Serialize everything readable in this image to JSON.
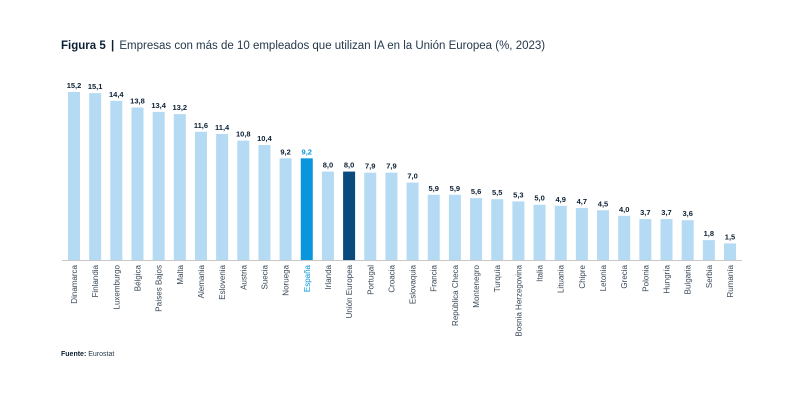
{
  "figure": {
    "label": "Figura 5",
    "separator": "|",
    "caption": "Empresas con más de 10 empleados que utilizan IA en la Unión Europea (%, 2023)"
  },
  "source": {
    "label": "Fuente:",
    "value": "Eurostat"
  },
  "colors": {
    "default_bar": "#b5daf3",
    "highlight_spain": "#0a96dc",
    "highlight_eu": "#0b4a7c",
    "value_label": "#0b1f33",
    "category_label": "#3a4a5a",
    "baseline": "#c8c8c8"
  },
  "chart_data": {
    "type": "bar",
    "title": "Empresas con más de 10 empleados que utilizan IA en la Unión Europea (%, 2023)",
    "xlabel": "",
    "ylabel": "",
    "ylim": [
      0,
      15.2
    ],
    "grid": false,
    "legend": "none",
    "decimal_separator": ",",
    "categories": [
      "Dinamarca",
      "Finlandia",
      "Luxemburgo",
      "Bélgica",
      "Países Bajos",
      "Malta",
      "Alemania",
      "Eslovenia",
      "Austria",
      "Suecia",
      "Noruega",
      "España",
      "Irlanda",
      "Unión Europea",
      "Portugal",
      "Croacia",
      "Eslovaquia",
      "Francia",
      "República Checa",
      "Montenegro",
      "Turquía",
      "Bosnia Herzegovina",
      "Italia",
      "Lituania",
      "Chipre",
      "Letonia",
      "Grecia",
      "Polonia",
      "Hungría",
      "Bulgaria",
      "Serbia",
      "Rumanía"
    ],
    "values": [
      15.2,
      15.1,
      14.4,
      13.8,
      13.4,
      13.2,
      11.6,
      11.4,
      10.8,
      10.4,
      9.2,
      9.2,
      8.0,
      8.0,
      7.9,
      7.9,
      7.0,
      5.9,
      5.9,
      5.6,
      5.5,
      5.3,
      5.0,
      4.9,
      4.7,
      4.5,
      4.0,
      3.7,
      3.7,
      3.6,
      1.8,
      1.5
    ],
    "highlights": {
      "España": "highlight_spain",
      "Unión Europea": "highlight_eu"
    },
    "source": "Eurostat"
  }
}
